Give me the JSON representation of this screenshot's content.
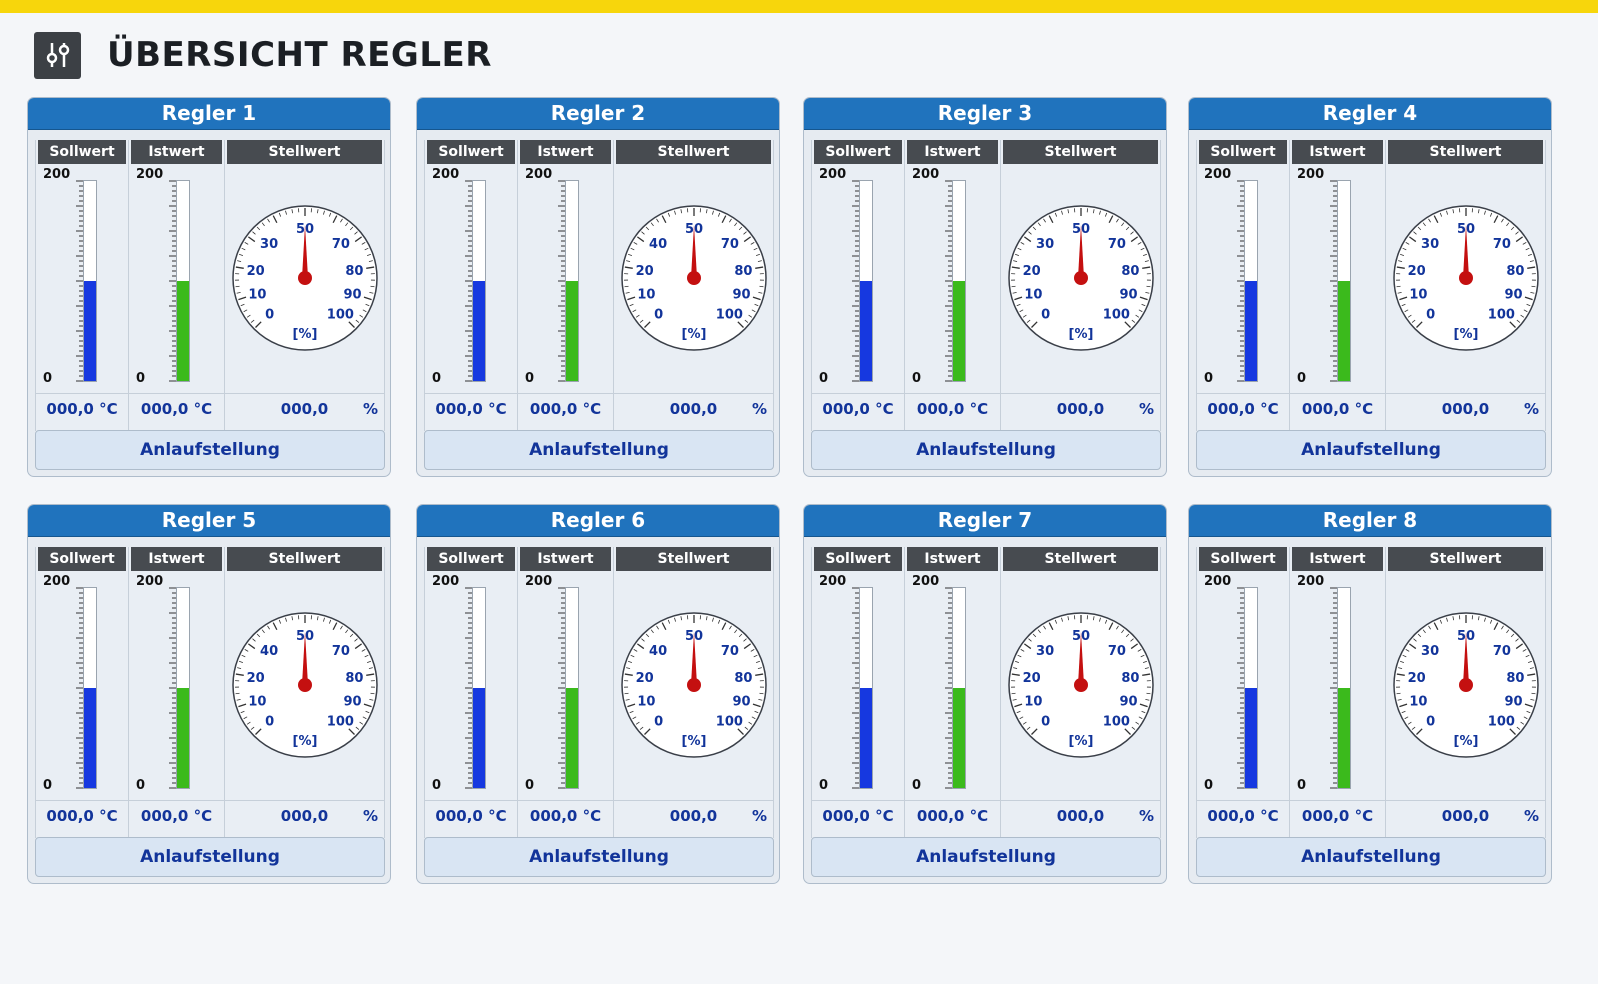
{
  "page": {
    "title": "ÜBERSICHT REGLER",
    "icon": "sliders-icon",
    "accent_color": "#f7d60c"
  },
  "labels": {
    "sollwert": "Sollwert",
    "istwert": "Istwert",
    "stellwert": "Stellwert",
    "scale_max": "200",
    "scale_min": "0",
    "gauge_unit": "[%]",
    "percent": "%",
    "button": "Anlaufstellung"
  },
  "colors": {
    "sollwert_fill": "#1638e0",
    "istwert_fill": "#3bba1c",
    "header": "#2073bd",
    "needle": "#c41010"
  },
  "controllers": [
    {
      "name": "Regler 1",
      "sollwert": "000,0 °C",
      "istwert": "000,0 °C",
      "stellwert": "000,0",
      "sollwert_level": 0.5,
      "istwert_level": 0.5,
      "gauge_value": 50,
      "gauge_ticks": [
        "0",
        "10",
        "20",
        "30",
        "50",
        "70",
        "80",
        "90",
        "100"
      ]
    },
    {
      "name": "Regler 2",
      "sollwert": "000,0 °C",
      "istwert": "000,0 °C",
      "stellwert": "000,0",
      "sollwert_level": 0.5,
      "istwert_level": 0.5,
      "gauge_value": 50,
      "gauge_ticks": [
        "0",
        "10",
        "20",
        "40",
        "50",
        "70",
        "80",
        "90",
        "100"
      ]
    },
    {
      "name": "Regler 3",
      "sollwert": "000,0 °C",
      "istwert": "000,0 °C",
      "stellwert": "000,0",
      "sollwert_level": 0.5,
      "istwert_level": 0.5,
      "gauge_value": 50,
      "gauge_ticks": [
        "0",
        "10",
        "20",
        "30",
        "50",
        "70",
        "80",
        "90",
        "100"
      ]
    },
    {
      "name": "Regler 4",
      "sollwert": "000,0 °C",
      "istwert": "000,0 °C",
      "stellwert": "000,0",
      "sollwert_level": 0.5,
      "istwert_level": 0.5,
      "gauge_value": 50,
      "gauge_ticks": [
        "0",
        "10",
        "20",
        "30",
        "50",
        "70",
        "80",
        "90",
        "100"
      ]
    },
    {
      "name": "Regler 5",
      "sollwert": "000,0 °C",
      "istwert": "000,0 °C",
      "stellwert": "000,0",
      "sollwert_level": 0.5,
      "istwert_level": 0.5,
      "gauge_value": 50,
      "gauge_ticks": [
        "0",
        "10",
        "20",
        "40",
        "50",
        "70",
        "80",
        "90",
        "100"
      ]
    },
    {
      "name": "Regler 6",
      "sollwert": "000,0 °C",
      "istwert": "000,0 °C",
      "stellwert": "000,0",
      "sollwert_level": 0.5,
      "istwert_level": 0.5,
      "gauge_value": 50,
      "gauge_ticks": [
        "0",
        "10",
        "20",
        "40",
        "50",
        "70",
        "80",
        "90",
        "100"
      ]
    },
    {
      "name": "Regler 7",
      "sollwert": "000,0 °C",
      "istwert": "000,0 °C",
      "stellwert": "000,0",
      "sollwert_level": 0.5,
      "istwert_level": 0.5,
      "gauge_value": 50,
      "gauge_ticks": [
        "0",
        "10",
        "20",
        "30",
        "50",
        "70",
        "80",
        "90",
        "100"
      ]
    },
    {
      "name": "Regler 8",
      "sollwert": "000,0 °C",
      "istwert": "000,0 °C",
      "stellwert": "000,0",
      "sollwert_level": 0.5,
      "istwert_level": 0.5,
      "gauge_value": 50,
      "gauge_ticks": [
        "0",
        "10",
        "20",
        "30",
        "50",
        "70",
        "80",
        "90",
        "100"
      ]
    }
  ]
}
